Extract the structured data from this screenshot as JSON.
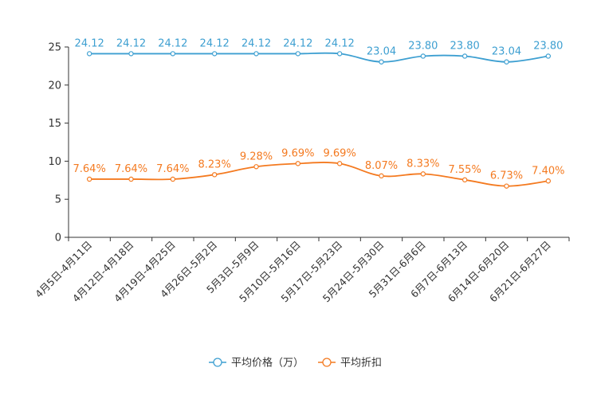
{
  "chart_data": {
    "type": "line",
    "title": "",
    "xlabel": "",
    "ylabel": "",
    "ylim": [
      0,
      25
    ],
    "yticks": [
      0,
      5,
      10,
      15,
      20,
      25
    ],
    "grid": false,
    "legend_position": "bottom-center",
    "categories": [
      "4月5日-4月11日",
      "4月12日-4月18日",
      "4月19日-4月25日",
      "4月26日-5月2日",
      "5月3日-5月9日",
      "5月10日-5月16日",
      "5月17日-5月23日",
      "5月24日-5月30日",
      "5月31日-6月6日",
      "6月7日-6月13日",
      "6月14日-6月20日",
      "6月21日-6月27日"
    ],
    "series": [
      {
        "name": "平均价格（万）",
        "color": "#3d9fd1",
        "values": [
          24.12,
          24.12,
          24.12,
          24.12,
          24.12,
          24.12,
          24.12,
          23.04,
          23.8,
          23.8,
          23.04,
          23.8
        ],
        "labels": [
          "24.12",
          "24.12",
          "24.12",
          "24.12",
          "24.12",
          "24.12",
          "24.12",
          "23.04",
          "23.80",
          "23.80",
          "23.04",
          "23.80"
        ]
      },
      {
        "name": "平均折扣",
        "color": "#f47a20",
        "values": [
          7.64,
          7.64,
          7.64,
          8.23,
          9.28,
          9.69,
          9.69,
          8.07,
          8.33,
          7.55,
          6.73,
          7.4
        ],
        "labels": [
          "7.64%",
          "7.64%",
          "7.64%",
          "8.23%",
          "9.28%",
          "9.69%",
          "9.69%",
          "8.07%",
          "8.33%",
          "7.55%",
          "6.73%",
          "7.40%"
        ]
      }
    ]
  }
}
